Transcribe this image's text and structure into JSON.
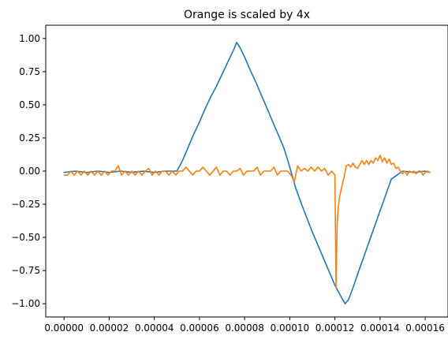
{
  "chart_data": {
    "type": "line",
    "title": "Orange is scaled by 4x",
    "xlabel": "",
    "ylabel": "",
    "xlim": [
      -8.1e-06,
      0.0001701
    ],
    "ylim": [
      -1.1,
      1.1
    ],
    "grid": false,
    "x_ticks": [
      0,
      2e-05,
      4e-05,
      6e-05,
      8e-05,
      0.0001,
      0.00012,
      0.00014,
      0.00016
    ],
    "x_tick_labels": [
      "0.00000",
      "0.00002",
      "0.00004",
      "0.00006",
      "0.00008",
      "0.00010",
      "0.00012",
      "0.00014",
      "0.00016"
    ],
    "y_ticks": [
      -1.0,
      -0.75,
      -0.5,
      -0.25,
      0.0,
      0.25,
      0.5,
      0.75,
      1.0
    ],
    "y_tick_labels": [
      "−1.00",
      "−0.75",
      "−0.50",
      "−0.25",
      "0.00",
      "0.25",
      "0.50",
      "0.75",
      "1.00"
    ],
    "series": [
      {
        "color": "#1f77b4",
        "x": [
          0,
          5e-06,
          1e-05,
          1.5e-05,
          2e-05,
          2.5e-05,
          3e-05,
          3.5e-05,
          4e-05,
          4.5e-05,
          5e-05,
          5.25e-05,
          5.5e-05,
          5.75e-05,
          6e-05,
          6.25e-05,
          6.5e-05,
          6.75e-05,
          7e-05,
          7.25e-05,
          7.5e-05,
          7.65e-05,
          7.8e-05,
          8e-05,
          8.25e-05,
          8.5e-05,
          8.75e-05,
          9e-05,
          9.25e-05,
          9.5e-05,
          9.75e-05,
          0.0001,
          0.0001025,
          0.000105,
          0.0001075,
          0.00011,
          0.0001125,
          0.000115,
          0.0001175,
          0.00012,
          0.0001225,
          0.0001245,
          0.000126,
          0.000128,
          0.00013,
          0.0001325,
          0.000135,
          0.0001375,
          0.00014,
          0.0001425,
          0.000145,
          0.00015,
          0.000155,
          0.00016,
          0.000162
        ],
        "y": [
          -0.01,
          0.0,
          -0.01,
          0.0,
          -0.01,
          0.0,
          -0.01,
          0.0,
          -0.01,
          0.0,
          0.0,
          0.08,
          0.18,
          0.28,
          0.37,
          0.47,
          0.56,
          0.64,
          0.73,
          0.82,
          0.91,
          0.97,
          0.93,
          0.86,
          0.76,
          0.67,
          0.57,
          0.47,
          0.37,
          0.27,
          0.17,
          0.03,
          -0.12,
          -0.24,
          -0.35,
          -0.46,
          -0.56,
          -0.66,
          -0.76,
          -0.86,
          -0.94,
          -1.0,
          -0.97,
          -0.88,
          -0.78,
          -0.66,
          -0.54,
          -0.42,
          -0.3,
          -0.18,
          -0.06,
          0.0,
          -0.01,
          0.0,
          -0.01
        ]
      },
      {
        "color": "#ff7f0e",
        "x": [
          0,
          1.5e-06,
          3e-06,
          4.5e-06,
          6e-06,
          7.5e-06,
          9e-06,
          1.05e-05,
          1.2e-05,
          1.35e-05,
          1.5e-05,
          1.65e-05,
          1.8e-05,
          1.95e-05,
          2.1e-05,
          2.25e-05,
          2.4e-05,
          2.55e-05,
          2.7e-05,
          2.85e-05,
          3e-05,
          3.15e-05,
          3.3e-05,
          3.45e-05,
          3.6e-05,
          3.75e-05,
          3.9e-05,
          4.05e-05,
          4.2e-05,
          4.35e-05,
          4.5e-05,
          4.65e-05,
          4.8e-05,
          4.95e-05,
          5.1e-05,
          5.25e-05,
          5.4e-05,
          5.55e-05,
          5.7e-05,
          5.85e-05,
          6e-05,
          6.15e-05,
          6.3e-05,
          6.45e-05,
          6.6e-05,
          6.75e-05,
          6.9e-05,
          7.05e-05,
          7.2e-05,
          7.35e-05,
          7.5e-05,
          7.65e-05,
          7.8e-05,
          7.95e-05,
          8.1e-05,
          8.25e-05,
          8.4e-05,
          8.55e-05,
          8.7e-05,
          8.85e-05,
          9e-05,
          9.15e-05,
          9.3e-05,
          9.45e-05,
          9.6e-05,
          9.75e-05,
          9.9e-05,
          0.0001005,
          0.000102,
          0.0001035,
          0.000105,
          0.0001065,
          0.000108,
          0.0001095,
          0.000111,
          0.0001125,
          0.000114,
          0.0001155,
          0.000117,
          0.0001185,
          0.00012,
          0.0001205,
          0.000121,
          0.0001215,
          0.000122,
          0.000123,
          0.000124,
          0.000125,
          0.000126,
          0.000127,
          0.000128,
          0.000129,
          0.00013,
          0.000131,
          0.000132,
          0.000133,
          0.000134,
          0.000135,
          0.000136,
          0.000137,
          0.000138,
          0.000139,
          0.00014,
          0.000141,
          0.000142,
          0.000143,
          0.000144,
          0.000145,
          0.000146,
          0.000147,
          0.000148,
          0.000149,
          0.00015,
          0.000151,
          0.000152,
          0.000153,
          0.000154,
          0.000155,
          0.000156,
          0.000157,
          0.000158,
          0.000159,
          0.00016,
          0.000161,
          0.000162
        ],
        "y": [
          -0.03,
          -0.03,
          0.0,
          -0.03,
          0.0,
          -0.03,
          0.0,
          -0.03,
          0.0,
          -0.03,
          0.0,
          -0.03,
          0.0,
          -0.03,
          0.0,
          0.0,
          0.04,
          -0.03,
          0.0,
          -0.03,
          0.0,
          -0.03,
          0.0,
          -0.03,
          0.0,
          0.02,
          -0.03,
          0.0,
          -0.03,
          0.0,
          0.0,
          -0.03,
          0.0,
          -0.03,
          0.0,
          0.0,
          0.03,
          0.0,
          -0.03,
          0.0,
          0.0,
          0.03,
          0.0,
          -0.03,
          0.0,
          0.03,
          -0.03,
          0.0,
          0.0,
          -0.03,
          0.0,
          0.0,
          0.02,
          -0.03,
          0.0,
          0.0,
          0.0,
          0.03,
          -0.03,
          0.0,
          0.0,
          0.0,
          0.03,
          -0.03,
          0.0,
          0.0,
          0.0,
          -0.03,
          -0.08,
          0.04,
          0.0,
          0.02,
          0.0,
          0.03,
          0.0,
          0.03,
          0.0,
          0.02,
          -0.03,
          0.0,
          -0.03,
          -0.88,
          -0.4,
          -0.27,
          -0.2,
          -0.12,
          -0.05,
          0.04,
          0.05,
          0.03,
          0.06,
          0.03,
          0.02,
          0.05,
          0.08,
          0.05,
          0.08,
          0.05,
          0.08,
          0.06,
          0.1,
          0.08,
          0.12,
          0.07,
          0.1,
          0.06,
          0.09,
          0.05,
          0.06,
          0.02,
          0.03,
          0.0,
          -0.02,
          0.0,
          -0.03,
          0.0,
          -0.01,
          0.0,
          -0.02,
          0.0,
          0.0,
          -0.03,
          -0.01,
          0.0,
          -0.01
        ]
      }
    ]
  }
}
